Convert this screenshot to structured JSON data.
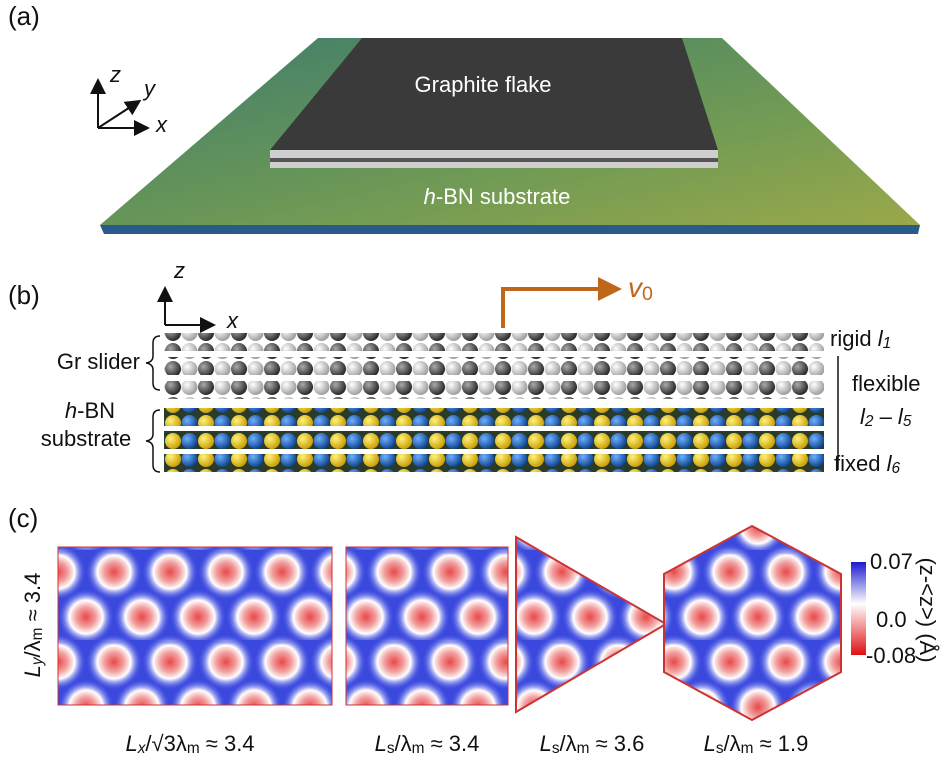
{
  "panel_a": {
    "label": "(a)",
    "axes": {
      "z": "z",
      "y": "y",
      "x": "x"
    },
    "flake": "Graphite flake",
    "substrate": [
      {
        "text": "h",
        "style": "italic"
      },
      {
        "text": "-BN substrate",
        "style": "normal"
      }
    ]
  },
  "panel_b": {
    "label": "(b)",
    "axes": {
      "z": "z",
      "x": "x"
    },
    "velocity": [
      {
        "text": "v",
        "style": "italic"
      },
      {
        "text": "0",
        "style": "sub"
      }
    ],
    "slider": "Gr slider",
    "substrate": [
      [
        {
          "text": "h",
          "style": "italic"
        },
        {
          "text": "-BN",
          "style": "normal"
        }
      ],
      [
        {
          "text": "substrate",
          "style": "normal"
        }
      ]
    ],
    "rigid": [
      {
        "text": "rigid ",
        "style": "normal"
      },
      {
        "text": "l",
        "style": "italic"
      },
      {
        "text": "1",
        "style": "italic-sub"
      }
    ],
    "flexible": [
      [
        {
          "text": "flexible",
          "style": "normal"
        }
      ],
      [
        {
          "text": "l",
          "style": "italic"
        },
        {
          "text": "2",
          "style": "italic-sub"
        },
        {
          "text": " – ",
          "style": "normal"
        },
        {
          "text": "l",
          "style": "italic"
        },
        {
          "text": "5",
          "style": "italic-sub"
        }
      ]
    ],
    "fixed": [
      {
        "text": "fixed ",
        "style": "normal"
      },
      {
        "text": "l",
        "style": "italic"
      },
      {
        "text": "6",
        "style": "italic-sub"
      }
    ]
  },
  "panel_c": {
    "label": "(c)",
    "side_label": [
      {
        "text": "L",
        "style": "italic"
      },
      {
        "text": "y",
        "style": "italic-sub"
      },
      {
        "text": "/λ",
        "style": "normal"
      },
      {
        "text": "m",
        "style": "sub"
      },
      {
        "text": " ≈ 3.4",
        "style": "normal"
      }
    ],
    "bottom_labels": [
      [
        {
          "text": "L",
          "style": "italic"
        },
        {
          "text": "x",
          "style": "italic-sub"
        },
        {
          "text": "/√3λ",
          "style": "normal"
        },
        {
          "text": "m",
          "style": "sub"
        },
        {
          "text": " ≈ 3.4",
          "style": "normal"
        }
      ],
      [
        {
          "text": "L",
          "style": "italic"
        },
        {
          "text": "s",
          "style": "sub"
        },
        {
          "text": "/λ",
          "style": "normal"
        },
        {
          "text": "m",
          "style": "sub"
        },
        {
          "text": " ≈ 3.4",
          "style": "normal"
        }
      ],
      [
        {
          "text": "L",
          "style": "italic"
        },
        {
          "text": "s",
          "style": "sub"
        },
        {
          "text": "/λ",
          "style": "normal"
        },
        {
          "text": "m",
          "style": "sub"
        },
        {
          "text": " ≈ 3.6",
          "style": "normal"
        }
      ],
      [
        {
          "text": "L",
          "style": "italic"
        },
        {
          "text": "s",
          "style": "sub"
        },
        {
          "text": "/λ",
          "style": "normal"
        },
        {
          "text": "m",
          "style": "sub"
        },
        {
          "text": " ≈ 1.9",
          "style": "normal"
        }
      ]
    ],
    "colorbar": {
      "ticks": [
        "0.07",
        "0.0",
        "-0.08"
      ],
      "label": "(z-<z>) (Å)"
    }
  }
}
